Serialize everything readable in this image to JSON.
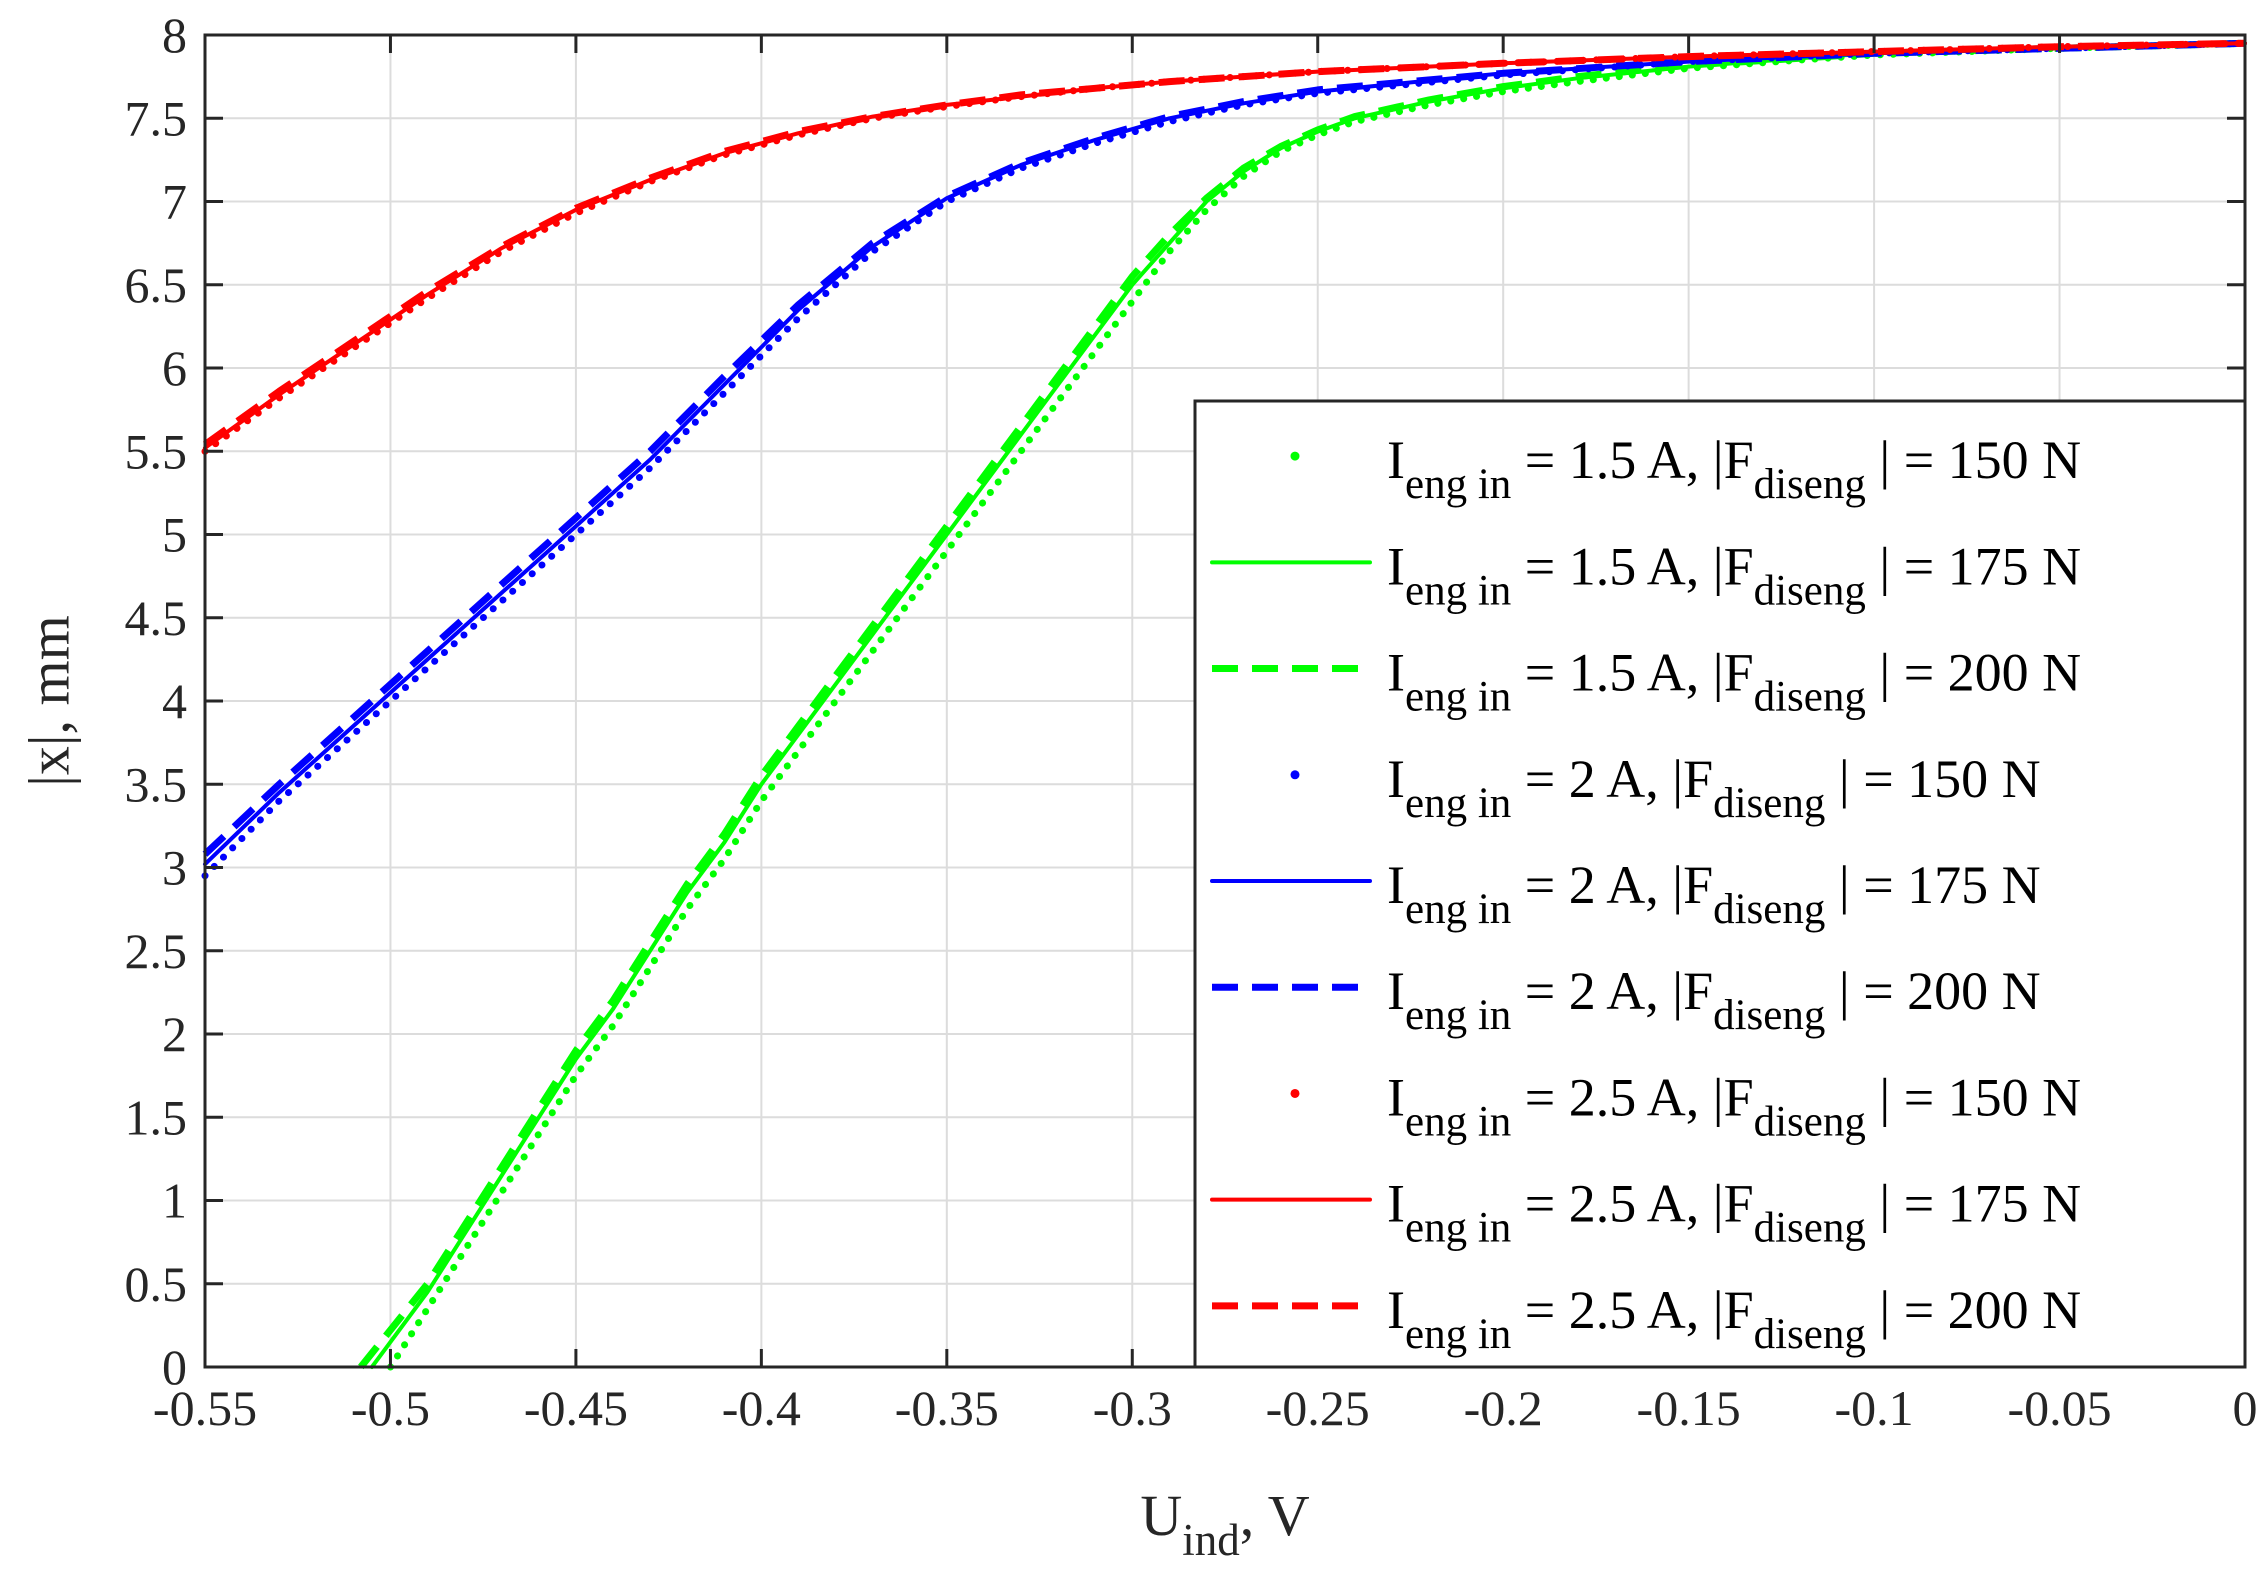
{
  "chart_data": {
    "type": "line",
    "title": "",
    "xlabel": "U",
    "xlabel_sub": "ind",
    "xlabel_suffix": ", V",
    "ylabel": "|x|, mm",
    "xlim": [
      -0.55,
      0
    ],
    "ylim": [
      0,
      8
    ],
    "grid": true,
    "legend_position": "right",
    "x_ticks": [
      -0.55,
      -0.5,
      -0.45,
      -0.4,
      -0.35,
      -0.3,
      -0.25,
      -0.2,
      -0.15,
      -0.1,
      -0.05,
      0
    ],
    "x_tick_labels": [
      "-0.55",
      "-0.5",
      "-0.45",
      "-0.4",
      "-0.35",
      "-0.3",
      "-0.25",
      "-0.2",
      "-0.15",
      "-0.1",
      "-0.05",
      "0"
    ],
    "y_ticks": [
      0,
      0.5,
      1,
      1.5,
      2,
      2.5,
      3,
      3.5,
      4,
      4.5,
      5,
      5.5,
      6,
      6.5,
      7,
      7.5,
      8
    ],
    "y_tick_labels": [
      "0",
      "0.5",
      "1",
      "1.5",
      "2",
      "2.5",
      "3",
      "3.5",
      "4",
      "4.5",
      "5",
      "5.5",
      "6",
      "6.5",
      "7",
      "7.5",
      "8"
    ],
    "series": [
      {
        "name": "I eng in = 1.5 A, |F diseng | = 150 N",
        "label": {
          "p1": "I",
          "s1": "eng in",
          "p2": " = 1.5 A, |F",
          "s2": "diseng",
          "p3": " | = 150 N"
        },
        "color": "#00ff00",
        "style": "dotted",
        "x": [
          -0.5,
          -0.49,
          -0.48,
          -0.47,
          -0.46,
          -0.45,
          -0.44,
          -0.43,
          -0.42,
          -0.41,
          -0.4,
          -0.39,
          -0.38,
          -0.37,
          -0.36,
          -0.35,
          -0.34,
          -0.33,
          -0.32,
          -0.31,
          -0.3,
          -0.29,
          -0.28,
          -0.27,
          -0.26,
          -0.25,
          -0.24,
          -0.22,
          -0.2,
          -0.18,
          -0.15,
          -0.12,
          -0.1,
          -0.05,
          0
        ],
        "y": [
          0,
          0.35,
          0.7,
          1.05,
          1.4,
          1.75,
          2.05,
          2.4,
          2.75,
          3.05,
          3.4,
          3.7,
          4.0,
          4.3,
          4.6,
          4.9,
          5.2,
          5.5,
          5.8,
          6.1,
          6.4,
          6.7,
          6.95,
          7.15,
          7.3,
          7.4,
          7.48,
          7.58,
          7.66,
          7.72,
          7.8,
          7.85,
          7.88,
          7.92,
          7.95
        ]
      },
      {
        "name": "I eng in = 1.5 A, |F diseng | = 175 N",
        "label": {
          "p1": "I",
          "s1": "eng in",
          "p2": " = 1.5 A, |F",
          "s2": "diseng",
          "p3": " | = 175 N"
        },
        "color": "#00ff00",
        "style": "solid",
        "x": [
          -0.505,
          -0.49,
          -0.48,
          -0.47,
          -0.46,
          -0.45,
          -0.44,
          -0.43,
          -0.42,
          -0.41,
          -0.4,
          -0.39,
          -0.38,
          -0.37,
          -0.36,
          -0.35,
          -0.34,
          -0.33,
          -0.32,
          -0.31,
          -0.3,
          -0.29,
          -0.28,
          -0.27,
          -0.26,
          -0.25,
          -0.24,
          -0.22,
          -0.2,
          -0.18,
          -0.15,
          -0.12,
          -0.1,
          -0.05,
          0
        ],
        "y": [
          0,
          0.45,
          0.8,
          1.15,
          1.5,
          1.85,
          2.15,
          2.5,
          2.85,
          3.15,
          3.5,
          3.8,
          4.1,
          4.4,
          4.7,
          5.0,
          5.3,
          5.6,
          5.9,
          6.2,
          6.5,
          6.75,
          7.0,
          7.18,
          7.32,
          7.42,
          7.5,
          7.6,
          7.68,
          7.74,
          7.81,
          7.86,
          7.89,
          7.92,
          7.95
        ]
      },
      {
        "name": "I eng in = 1.5 A, |F diseng | = 200 N",
        "label": {
          "p1": "I",
          "s1": "eng in",
          "p2": " = 1.5 A, |F",
          "s2": "diseng",
          "p3": " | = 200 N"
        },
        "color": "#00ff00",
        "style": "dashed",
        "x": [
          -0.508,
          -0.49,
          -0.48,
          -0.47,
          -0.46,
          -0.45,
          -0.44,
          -0.43,
          -0.42,
          -0.41,
          -0.4,
          -0.39,
          -0.38,
          -0.37,
          -0.36,
          -0.35,
          -0.34,
          -0.33,
          -0.32,
          -0.31,
          -0.3,
          -0.29,
          -0.28,
          -0.27,
          -0.26,
          -0.25,
          -0.24,
          -0.22,
          -0.2,
          -0.18,
          -0.15,
          -0.12,
          -0.1,
          -0.05,
          0
        ],
        "y": [
          0,
          0.5,
          0.85,
          1.2,
          1.55,
          1.9,
          2.2,
          2.55,
          2.9,
          3.2,
          3.55,
          3.85,
          4.15,
          4.45,
          4.75,
          5.05,
          5.35,
          5.65,
          5.95,
          6.25,
          6.55,
          6.8,
          7.02,
          7.2,
          7.33,
          7.43,
          7.51,
          7.61,
          7.69,
          7.75,
          7.82,
          7.86,
          7.89,
          7.92,
          7.95
        ]
      },
      {
        "name": "I eng in = 2 A, |F diseng | = 150 N",
        "label": {
          "p1": "I",
          "s1": "eng in",
          "p2": " = 2 A, |F",
          "s2": "diseng",
          "p3": " | = 150 N"
        },
        "color": "#0000ff",
        "style": "dotted",
        "x": [
          -0.55,
          -0.53,
          -0.51,
          -0.49,
          -0.47,
          -0.45,
          -0.43,
          -0.41,
          -0.39,
          -0.37,
          -0.35,
          -0.33,
          -0.31,
          -0.29,
          -0.27,
          -0.25,
          -0.2,
          -0.15,
          -0.1,
          -0.05,
          0
        ],
        "y": [
          2.95,
          3.4,
          3.8,
          4.2,
          4.6,
          5.0,
          5.4,
          5.85,
          6.3,
          6.7,
          7.0,
          7.2,
          7.35,
          7.48,
          7.58,
          7.65,
          7.76,
          7.84,
          7.89,
          7.92,
          7.95
        ]
      },
      {
        "name": "I eng in = 2 A, |F diseng | = 175 N",
        "label": {
          "p1": "I",
          "s1": "eng in",
          "p2": " = 2 A, |F",
          "s2": "diseng",
          "p3": " | = 175 N"
        },
        "color": "#0000ff",
        "style": "solid",
        "x": [
          -0.55,
          -0.53,
          -0.51,
          -0.49,
          -0.47,
          -0.45,
          -0.43,
          -0.41,
          -0.39,
          -0.37,
          -0.35,
          -0.33,
          -0.31,
          -0.29,
          -0.27,
          -0.25,
          -0.2,
          -0.15,
          -0.1,
          -0.05,
          0
        ],
        "y": [
          3.02,
          3.45,
          3.85,
          4.25,
          4.65,
          5.05,
          5.45,
          5.9,
          6.35,
          6.73,
          7.02,
          7.22,
          7.37,
          7.5,
          7.59,
          7.66,
          7.77,
          7.84,
          7.89,
          7.92,
          7.95
        ]
      },
      {
        "name": "I eng in = 2 A, |F diseng | = 200 N",
        "label": {
          "p1": "I",
          "s1": "eng in",
          "p2": " = 2 A, |F",
          "s2": "diseng",
          "p3": " | = 200 N"
        },
        "color": "#0000ff",
        "style": "dashed",
        "x": [
          -0.55,
          -0.53,
          -0.51,
          -0.49,
          -0.47,
          -0.45,
          -0.43,
          -0.41,
          -0.39,
          -0.37,
          -0.35,
          -0.33,
          -0.31,
          -0.29,
          -0.27,
          -0.25,
          -0.2,
          -0.15,
          -0.1,
          -0.05,
          0
        ],
        "y": [
          3.08,
          3.5,
          3.9,
          4.3,
          4.7,
          5.1,
          5.5,
          5.95,
          6.38,
          6.75,
          7.03,
          7.23,
          7.38,
          7.51,
          7.6,
          7.67,
          7.77,
          7.84,
          7.89,
          7.92,
          7.95
        ]
      },
      {
        "name": "I eng in = 2.5 A, |F diseng | = 150 N",
        "label": {
          "p1": "I",
          "s1": "eng in",
          "p2": " = 2.5 A, |F",
          "s2": "diseng",
          "p3": " | = 150 N"
        },
        "color": "#ff0000",
        "style": "dotted",
        "x": [
          -0.55,
          -0.53,
          -0.51,
          -0.49,
          -0.47,
          -0.45,
          -0.43,
          -0.41,
          -0.39,
          -0.37,
          -0.35,
          -0.33,
          -0.31,
          -0.29,
          -0.27,
          -0.25,
          -0.2,
          -0.15,
          -0.1,
          -0.05,
          0
        ],
        "y": [
          5.5,
          5.82,
          6.12,
          6.42,
          6.7,
          6.93,
          7.12,
          7.28,
          7.4,
          7.5,
          7.57,
          7.63,
          7.68,
          7.72,
          7.75,
          7.78,
          7.83,
          7.87,
          7.9,
          7.93,
          7.95
        ]
      },
      {
        "name": "I eng in = 2.5 A, |F diseng | = 175 N",
        "label": {
          "p1": "I",
          "s1": "eng in",
          "p2": " = 2.5 A, |F",
          "s2": "diseng",
          "p3": " | = 175 N"
        },
        "color": "#ff0000",
        "style": "solid",
        "x": [
          -0.55,
          -0.53,
          -0.51,
          -0.49,
          -0.47,
          -0.45,
          -0.43,
          -0.41,
          -0.39,
          -0.37,
          -0.35,
          -0.33,
          -0.31,
          -0.29,
          -0.27,
          -0.25,
          -0.2,
          -0.15,
          -0.1,
          -0.05,
          0
        ],
        "y": [
          5.52,
          5.84,
          6.14,
          6.44,
          6.72,
          6.95,
          7.13,
          7.29,
          7.41,
          7.51,
          7.58,
          7.63,
          7.68,
          7.72,
          7.75,
          7.78,
          7.83,
          7.87,
          7.9,
          7.93,
          7.95
        ]
      },
      {
        "name": "I eng in = 2.5 A, |F diseng | = 200 N",
        "label": {
          "p1": "I",
          "s1": "eng in",
          "p2": " = 2.5 A, |F",
          "s2": "diseng",
          "p3": " | = 200 N"
        },
        "color": "#ff0000",
        "style": "dashed",
        "x": [
          -0.55,
          -0.53,
          -0.51,
          -0.49,
          -0.47,
          -0.45,
          -0.43,
          -0.41,
          -0.39,
          -0.37,
          -0.35,
          -0.33,
          -0.31,
          -0.29,
          -0.27,
          -0.25,
          -0.2,
          -0.15,
          -0.1,
          -0.05,
          0
        ],
        "y": [
          5.54,
          5.86,
          6.16,
          6.46,
          6.73,
          6.96,
          7.14,
          7.3,
          7.42,
          7.51,
          7.58,
          7.64,
          7.68,
          7.72,
          7.75,
          7.78,
          7.83,
          7.87,
          7.9,
          7.93,
          7.95
        ]
      }
    ]
  }
}
